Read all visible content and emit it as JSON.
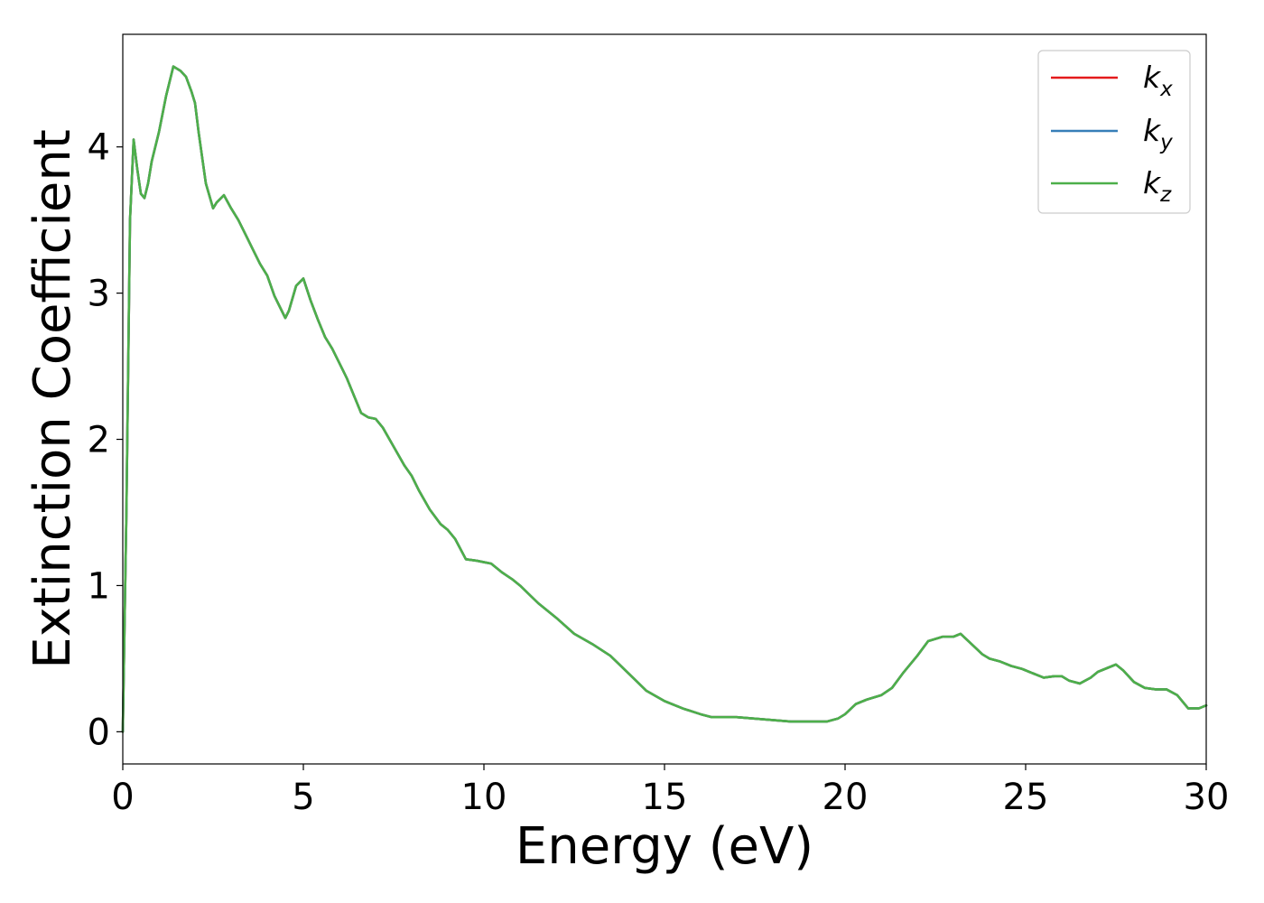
{
  "chart_data": {
    "type": "line",
    "title": "",
    "xlabel": "Energy (eV)",
    "ylabel": "Extinction Coefficient",
    "xlim": [
      0,
      30
    ],
    "ylim": [
      -0.22,
      4.77
    ],
    "xticks": [
      0,
      5,
      10,
      15,
      20,
      25,
      30
    ],
    "xtick_labels": [
      "0",
      "5",
      "10",
      "15",
      "20",
      "25",
      "30"
    ],
    "yticks": [
      0,
      1,
      2,
      3,
      4
    ],
    "ytick_labels": [
      "0",
      "1",
      "2",
      "3",
      "4"
    ],
    "grid": false,
    "legend_position": "top-right",
    "x": [
      0,
      0.1,
      0.2,
      0.3,
      0.4,
      0.5,
      0.6,
      0.7,
      0.8,
      1.0,
      1.2,
      1.4,
      1.6,
      1.75,
      1.9,
      2.0,
      2.1,
      2.3,
      2.5,
      2.6,
      2.8,
      3.0,
      3.2,
      3.4,
      3.6,
      3.8,
      4.0,
      4.2,
      4.5,
      4.6,
      4.8,
      5.0,
      5.2,
      5.4,
      5.6,
      5.8,
      6.0,
      6.2,
      6.4,
      6.6,
      6.8,
      7.0,
      7.2,
      7.5,
      7.8,
      8.0,
      8.2,
      8.5,
      8.8,
      9.0,
      9.2,
      9.5,
      9.8,
      10.0,
      10.2,
      10.5,
      10.8,
      11.0,
      11.5,
      12.0,
      12.5,
      13.0,
      13.5,
      14.0,
      14.5,
      15.0,
      15.5,
      16.0,
      16.3,
      16.6,
      17.0,
      17.5,
      18.0,
      18.5,
      19.0,
      19.5,
      19.8,
      20.0,
      20.3,
      20.6,
      21.0,
      21.3,
      21.6,
      22.0,
      22.3,
      22.7,
      23.0,
      23.2,
      23.5,
      23.8,
      24.0,
      24.3,
      24.6,
      24.9,
      25.2,
      25.5,
      25.8,
      26.0,
      26.2,
      26.5,
      26.8,
      27.0,
      27.3,
      27.5,
      27.7,
      28.0,
      28.3,
      28.6,
      28.9,
      29.2,
      29.5,
      29.8,
      30.0
    ],
    "series": [
      {
        "name": "k_x",
        "color": "#e41a1c",
        "values": [
          0.0,
          1.5,
          3.5,
          4.05,
          3.85,
          3.68,
          3.65,
          3.75,
          3.9,
          4.1,
          4.35,
          4.55,
          4.52,
          4.48,
          4.38,
          4.3,
          4.1,
          3.75,
          3.58,
          3.62,
          3.67,
          3.58,
          3.5,
          3.4,
          3.3,
          3.2,
          3.12,
          2.98,
          2.83,
          2.88,
          3.05,
          3.1,
          2.95,
          2.82,
          2.7,
          2.62,
          2.52,
          2.42,
          2.3,
          2.18,
          2.15,
          2.14,
          2.08,
          1.95,
          1.82,
          1.75,
          1.65,
          1.52,
          1.42,
          1.38,
          1.32,
          1.18,
          1.17,
          1.16,
          1.15,
          1.09,
          1.04,
          1.0,
          0.88,
          0.78,
          0.67,
          0.6,
          0.52,
          0.4,
          0.28,
          0.21,
          0.16,
          0.12,
          0.1,
          0.1,
          0.1,
          0.09,
          0.08,
          0.07,
          0.07,
          0.07,
          0.09,
          0.12,
          0.19,
          0.22,
          0.25,
          0.3,
          0.4,
          0.52,
          0.62,
          0.65,
          0.65,
          0.67,
          0.6,
          0.53,
          0.5,
          0.48,
          0.45,
          0.43,
          0.4,
          0.37,
          0.38,
          0.38,
          0.35,
          0.33,
          0.37,
          0.41,
          0.44,
          0.46,
          0.42,
          0.34,
          0.3,
          0.29,
          0.29,
          0.25,
          0.16,
          0.16,
          0.18
        ]
      },
      {
        "name": "k_y",
        "color": "#377eb8",
        "values": [
          0.0,
          1.5,
          3.5,
          4.05,
          3.85,
          3.68,
          3.65,
          3.75,
          3.9,
          4.1,
          4.35,
          4.55,
          4.52,
          4.48,
          4.38,
          4.3,
          4.1,
          3.75,
          3.58,
          3.62,
          3.67,
          3.58,
          3.5,
          3.4,
          3.3,
          3.2,
          3.12,
          2.98,
          2.83,
          2.88,
          3.05,
          3.1,
          2.95,
          2.82,
          2.7,
          2.62,
          2.52,
          2.42,
          2.3,
          2.18,
          2.15,
          2.14,
          2.08,
          1.95,
          1.82,
          1.75,
          1.65,
          1.52,
          1.42,
          1.38,
          1.32,
          1.18,
          1.17,
          1.16,
          1.15,
          1.09,
          1.04,
          1.0,
          0.88,
          0.78,
          0.67,
          0.6,
          0.52,
          0.4,
          0.28,
          0.21,
          0.16,
          0.12,
          0.1,
          0.1,
          0.1,
          0.09,
          0.08,
          0.07,
          0.07,
          0.07,
          0.09,
          0.12,
          0.19,
          0.22,
          0.25,
          0.3,
          0.4,
          0.52,
          0.62,
          0.65,
          0.65,
          0.67,
          0.6,
          0.53,
          0.5,
          0.48,
          0.45,
          0.43,
          0.4,
          0.37,
          0.38,
          0.38,
          0.35,
          0.33,
          0.37,
          0.41,
          0.44,
          0.46,
          0.42,
          0.34,
          0.3,
          0.29,
          0.29,
          0.25,
          0.16,
          0.16,
          0.18
        ]
      },
      {
        "name": "k_z",
        "color": "#4daf4a",
        "values": [
          0.0,
          1.5,
          3.5,
          4.05,
          3.85,
          3.68,
          3.65,
          3.75,
          3.9,
          4.1,
          4.35,
          4.55,
          4.52,
          4.48,
          4.38,
          4.3,
          4.1,
          3.75,
          3.58,
          3.62,
          3.67,
          3.58,
          3.5,
          3.4,
          3.3,
          3.2,
          3.12,
          2.98,
          2.83,
          2.88,
          3.05,
          3.1,
          2.95,
          2.82,
          2.7,
          2.62,
          2.52,
          2.42,
          2.3,
          2.18,
          2.15,
          2.14,
          2.08,
          1.95,
          1.82,
          1.75,
          1.65,
          1.52,
          1.42,
          1.38,
          1.32,
          1.18,
          1.17,
          1.16,
          1.15,
          1.09,
          1.04,
          1.0,
          0.88,
          0.78,
          0.67,
          0.6,
          0.52,
          0.4,
          0.28,
          0.21,
          0.16,
          0.12,
          0.1,
          0.1,
          0.1,
          0.09,
          0.08,
          0.07,
          0.07,
          0.07,
          0.09,
          0.12,
          0.19,
          0.22,
          0.25,
          0.3,
          0.4,
          0.52,
          0.62,
          0.65,
          0.65,
          0.67,
          0.6,
          0.53,
          0.5,
          0.48,
          0.45,
          0.43,
          0.4,
          0.37,
          0.38,
          0.38,
          0.35,
          0.33,
          0.37,
          0.41,
          0.44,
          0.46,
          0.42,
          0.34,
          0.3,
          0.29,
          0.29,
          0.25,
          0.16,
          0.16,
          0.18
        ]
      }
    ],
    "legend": [
      {
        "base": "k",
        "sub": "x",
        "color": "#e41a1c"
      },
      {
        "base": "k",
        "sub": "y",
        "color": "#377eb8"
      },
      {
        "base": "k",
        "sub": "z",
        "color": "#4daf4a"
      }
    ]
  }
}
